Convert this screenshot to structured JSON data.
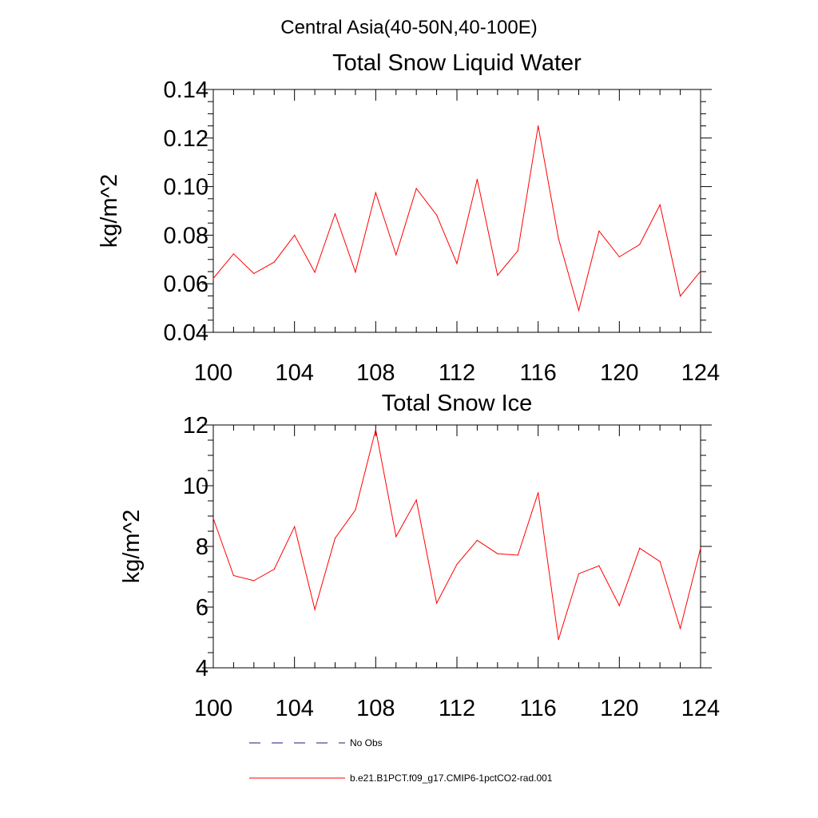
{
  "title": "Central Asia(40-50N,40-100E)",
  "colors": {
    "model": "#ff0000",
    "obs": "#1a1a80",
    "axes": "#000000"
  },
  "chart_data": [
    {
      "type": "line",
      "title": "Total Snow Liquid Water",
      "xlabel": "",
      "ylabel": "kg/m^2",
      "xlim": [
        100,
        124
      ],
      "ylim": [
        0.04,
        0.14
      ],
      "x_ticks": [
        100,
        104,
        108,
        112,
        116,
        120,
        124
      ],
      "x_tick_labels": [
        "100",
        "104",
        "108",
        "112",
        "116",
        "120",
        "124"
      ],
      "y_ticks": [
        0.04,
        0.06,
        0.08,
        0.1,
        0.12,
        0.14
      ],
      "y_tick_labels": [
        "0.04",
        "0.06",
        "0.08",
        "0.10",
        "0.12",
        "0.14"
      ],
      "y_minor_step": 0.005,
      "grid": false,
      "x": [
        100,
        101,
        102,
        103,
        104,
        105,
        106,
        107,
        108,
        109,
        110,
        111,
        112,
        113,
        114,
        115,
        116,
        117,
        118,
        119,
        120,
        121,
        122,
        123,
        124
      ],
      "series": [
        {
          "name": "b.e21.B1PCT.f09_g17.CMIP6-1pctCO2-rad.001",
          "color": "#ff0000",
          "values": [
            0.0622,
            0.0723,
            0.0642,
            0.0689,
            0.08,
            0.0647,
            0.0888,
            0.0648,
            0.0975,
            0.0719,
            0.0992,
            0.0883,
            0.0683,
            0.103,
            0.0635,
            0.0736,
            0.125,
            0.0787,
            0.049,
            0.0817,
            0.0711,
            0.0762,
            0.0925,
            0.0549,
            0.0652
          ]
        }
      ]
    },
    {
      "type": "line",
      "title": "Total Snow Ice",
      "xlabel": "",
      "ylabel": "kg/m^2",
      "xlim": [
        100,
        124
      ],
      "ylim": [
        4,
        12
      ],
      "x_ticks": [
        100,
        104,
        108,
        112,
        116,
        120,
        124
      ],
      "x_tick_labels": [
        "100",
        "104",
        "108",
        "112",
        "116",
        "120",
        "124"
      ],
      "y_ticks": [
        4,
        6,
        8,
        10,
        12
      ],
      "y_tick_labels": [
        "4",
        "6",
        "8",
        "10",
        "12"
      ],
      "y_minor_step": 0.5,
      "grid": false,
      "x": [
        100,
        101,
        102,
        103,
        104,
        105,
        106,
        107,
        108,
        109,
        110,
        111,
        112,
        113,
        114,
        115,
        116,
        117,
        118,
        119,
        120,
        121,
        122,
        123,
        124
      ],
      "series": [
        {
          "name": "b.e21.B1PCT.f09_g17.CMIP6-1pctCO2-rad.001",
          "color": "#ff0000",
          "values": [
            8.92,
            7.04,
            6.87,
            7.25,
            8.65,
            5.92,
            8.27,
            9.2,
            11.85,
            8.32,
            9.53,
            6.13,
            7.41,
            8.2,
            7.76,
            7.71,
            9.77,
            4.93,
            7.1,
            7.36,
            6.05,
            7.94,
            7.5,
            5.3,
            7.94
          ]
        }
      ]
    }
  ],
  "legend": {
    "position": "bottom",
    "items": [
      {
        "label": "No Obs",
        "style": "dashed",
        "color": "#1a1a80"
      },
      {
        "label": "b.e21.B1PCT.f09_g17.CMIP6-1pctCO2-rad.001",
        "style": "solid",
        "color": "#ff0000"
      }
    ]
  }
}
